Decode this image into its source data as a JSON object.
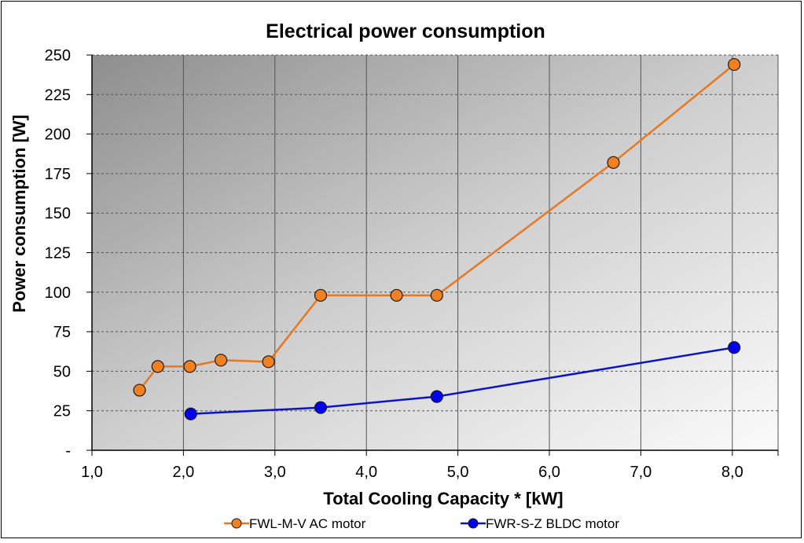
{
  "chart_data": {
    "type": "line",
    "title": "Electrical power consumption",
    "xlabel": "Total Cooling Capacity * [kW]",
    "ylabel": "Power consumption [W]",
    "xlim": [
      1.0,
      8.5
    ],
    "ylim": [
      0,
      250
    ],
    "x_ticks": [
      1.0,
      2.0,
      3.0,
      4.0,
      5.0,
      6.0,
      7.0,
      8.0
    ],
    "x_tick_labels": [
      "1,0",
      "2,0",
      "3,0",
      "4,0",
      "5,0",
      "6,0",
      "7,0",
      "8,0"
    ],
    "y_ticks": [
      0,
      25,
      50,
      75,
      100,
      125,
      150,
      175,
      200,
      225,
      250
    ],
    "y_tick_labels": [
      "-",
      "25",
      "50",
      "75",
      "100",
      "125",
      "150",
      "175",
      "200",
      "225",
      "250"
    ],
    "grid": true,
    "legend_position": "bottom",
    "series": [
      {
        "name": "FWL-M-V AC motor",
        "color": "#e87722",
        "marker_fill": "#f08020",
        "points": [
          {
            "x": 1.52,
            "y": 38
          },
          {
            "x": 1.72,
            "y": 53
          },
          {
            "x": 2.07,
            "y": 53
          },
          {
            "x": 2.41,
            "y": 57
          },
          {
            "x": 2.93,
            "y": 56
          },
          {
            "x": 3.5,
            "y": 98
          },
          {
            "x": 4.33,
            "y": 98
          },
          {
            "x": 4.77,
            "y": 98
          },
          {
            "x": 6.7,
            "y": 182
          },
          {
            "x": 8.02,
            "y": 244
          }
        ]
      },
      {
        "name": "FWR-S-Z BLDC motor",
        "color": "#0a14c8",
        "marker_fill": "#0000ee",
        "points": [
          {
            "x": 2.08,
            "y": 23
          },
          {
            "x": 3.5,
            "y": 27
          },
          {
            "x": 4.77,
            "y": 34
          },
          {
            "x": 8.02,
            "y": 65
          }
        ]
      }
    ]
  }
}
